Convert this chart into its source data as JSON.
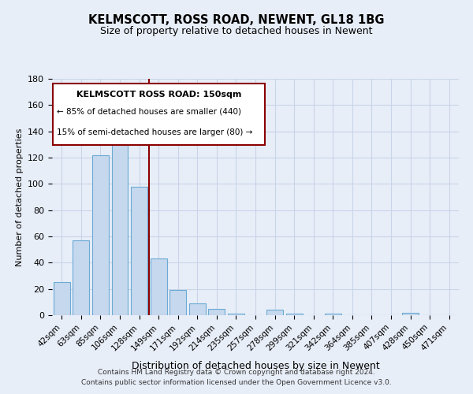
{
  "title": "KELMSCOTT, ROSS ROAD, NEWENT, GL18 1BG",
  "subtitle": "Size of property relative to detached houses in Newent",
  "xlabel": "Distribution of detached houses by size in Newent",
  "ylabel": "Number of detached properties",
  "bins": [
    "42sqm",
    "63sqm",
    "85sqm",
    "106sqm",
    "128sqm",
    "149sqm",
    "171sqm",
    "192sqm",
    "214sqm",
    "235sqm",
    "257sqm",
    "278sqm",
    "299sqm",
    "321sqm",
    "342sqm",
    "364sqm",
    "385sqm",
    "407sqm",
    "428sqm",
    "450sqm",
    "471sqm"
  ],
  "values": [
    25,
    57,
    122,
    141,
    98,
    43,
    19,
    9,
    5,
    1,
    0,
    4,
    1,
    0,
    1,
    0,
    0,
    0,
    2,
    0,
    0
  ],
  "bar_color": "#c5d8ed",
  "bar_edge_color": "#6aaad4",
  "highlight_line_color": "#8b0000",
  "annotation_title": "KELMSCOTT ROSS ROAD: 150sqm",
  "annotation_line1": "← 85% of detached houses are smaller (440)",
  "annotation_line2": "15% of semi-detached houses are larger (80) →",
  "footer1": "Contains HM Land Registry data © Crown copyright and database right 2024.",
  "footer2": "Contains public sector information licensed under the Open Government Licence v3.0.",
  "ylim": [
    0,
    180
  ],
  "background_color": "#e8eef8",
  "grid_color": "#c8d4e8"
}
